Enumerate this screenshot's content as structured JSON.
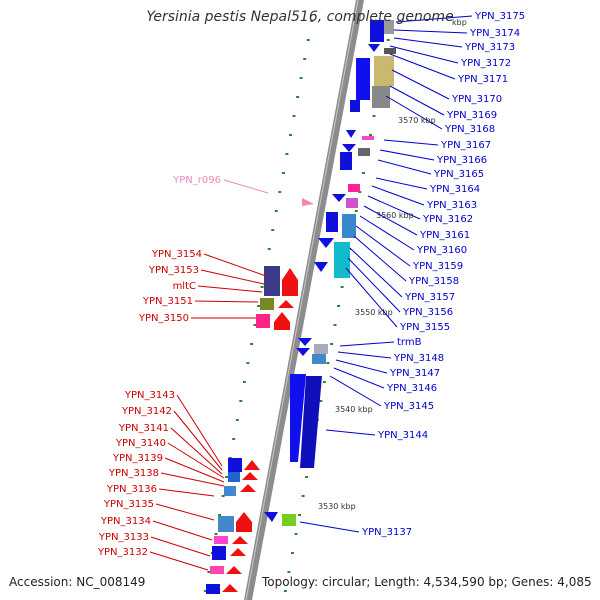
{
  "title": "Yersinia pestis Nepal516, complete genome",
  "accession_label": "Accession: NC_008149",
  "topology_label": "Topology: circular; Length: 4,534,590 bp; Genes: 4,085",
  "colors": {
    "backbone": "#8a8a8a",
    "forward_label": "#0000cc",
    "reverse_label": "#cc0000",
    "rna_label": "#ee88bb",
    "tick": "#2a8a2a"
  },
  "scale_labels": [
    "3570 kbp",
    "3560 kbp",
    "3550 kbp",
    "3540 kbp",
    "3530 kbp",
    "kbp"
  ],
  "forward_labels": [
    "YPN_3175",
    "YPN_3174",
    "YPN_3173",
    "YPN_3172",
    "YPN_3171",
    "YPN_3170",
    "YPN_3169",
    "YPN_3168",
    "YPN_3167",
    "YPN_3166",
    "YPN_3165",
    "YPN_3164",
    "YPN_3163",
    "YPN_3162",
    "YPN_3161",
    "YPN_3160",
    "YPN_3159",
    "YPN_3158",
    "YPN_3157",
    "YPN_3156",
    "YPN_3155",
    "trmB",
    "YPN_3148",
    "YPN_3147",
    "YPN_3146",
    "YPN_3145",
    "YPN_3144",
    "YPN_3137"
  ],
  "reverse_labels": [
    "YPN_3154",
    "YPN_3153",
    "mltC",
    "YPN_3151",
    "YPN_3150",
    "YPN_3143",
    "YPN_3142",
    "YPN_3141",
    "YPN_3140",
    "YPN_3139",
    "YPN_3138",
    "YPN_3136",
    "YPN_3135",
    "YPN_3134",
    "YPN_3133",
    "YPN_3132"
  ],
  "rna_labels": [
    "YPN_r096"
  ]
}
